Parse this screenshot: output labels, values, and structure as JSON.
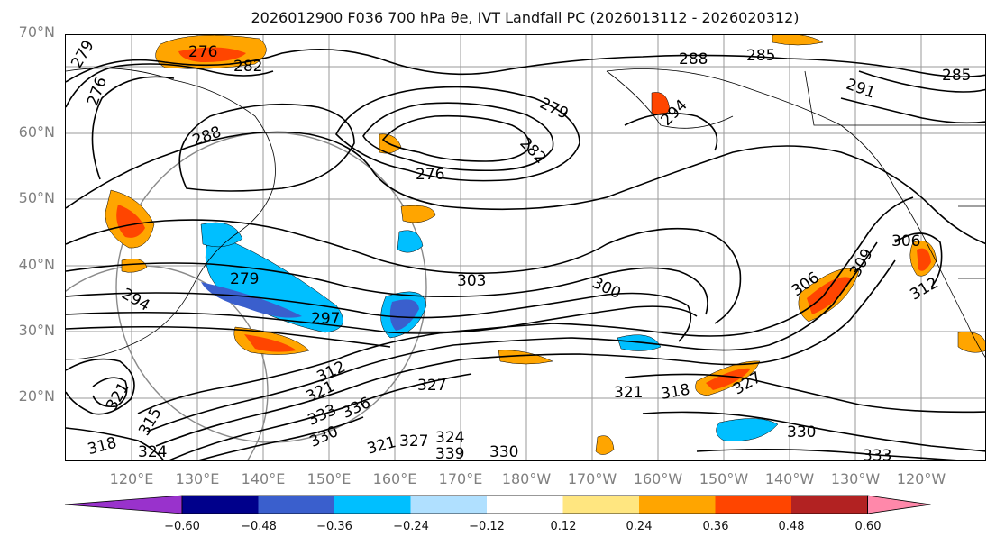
{
  "title": "2026012900 F036 700 hPa θe, IVT Landfall PC (2026013112 - 2026020312)",
  "map": {
    "lat_labels": [
      "70°N",
      "60°N",
      "50°N",
      "40°N",
      "30°N",
      "20°N"
    ],
    "lon_labels": [
      "120°E",
      "130°E",
      "140°E",
      "150°E",
      "160°E",
      "170°E",
      "180°W",
      "170°W",
      "160°W",
      "150°W",
      "140°W",
      "130°W",
      "120°W"
    ],
    "contour_labels": [
      "279",
      "282",
      "276",
      "288",
      "285",
      "291",
      "285",
      "279",
      "294",
      "282",
      "276",
      "288",
      "276",
      "279",
      "294",
      "297",
      "303",
      "300",
      "306",
      "309",
      "306",
      "312",
      "312",
      "327",
      "321",
      "315",
      "318",
      "324",
      "321",
      "333",
      "330",
      "336",
      "339",
      "324",
      "327",
      "330",
      "321",
      "318",
      "321",
      "327",
      "333",
      "330"
    ]
  },
  "colorbar": {
    "colors": [
      "#9932cc",
      "#00008b",
      "#3a5fcd",
      "#00bfff",
      "#b0e0ff",
      "#ffffff",
      "#ffe680",
      "#ffa500",
      "#ff4500",
      "#b22222",
      "#ff88aa"
    ],
    "ticks": [
      "−0.60",
      "−0.48",
      "−0.36",
      "−0.24",
      "−0.12",
      "0.12",
      "0.24",
      "0.36",
      "0.48",
      "0.60"
    ]
  }
}
